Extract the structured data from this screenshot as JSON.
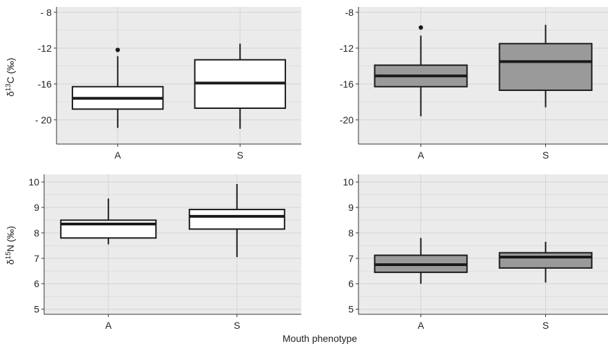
{
  "figure": {
    "xlabel": "Mouth phenotype",
    "ylabel_top": {
      "prefix": "δ",
      "sup": "13",
      "main": "C (‰)"
    },
    "ylabel_bottom": {
      "prefix": "δ",
      "sup": "15",
      "main": "N (‰)"
    }
  },
  "colors": {
    "panel_background": "#ebebeb",
    "grid": "#d4d4d4",
    "box_fill_left": "#ffffff",
    "box_fill_right": "#9a9a9a",
    "box_stroke": "#1a1a1a",
    "axis": "#333333"
  },
  "chart_data": [
    {
      "type": "box",
      "panel": "top-left",
      "categories": [
        "A",
        "S"
      ],
      "ylim": [
        -22.7,
        -7.4
      ],
      "yticks": [
        -8,
        -12,
        -16,
        -20
      ],
      "ytick_labels": [
        "- 8",
        "-12",
        "-16",
        "- 20"
      ],
      "boxes": [
        {
          "category": "A",
          "whisker_low": -20.9,
          "q1": -18.8,
          "median": -17.6,
          "q3": -16.3,
          "whisker_high": -12.9,
          "outliers": [
            -12.2
          ]
        },
        {
          "category": "S",
          "whisker_low": -21.0,
          "q1": -18.7,
          "median": -15.9,
          "q3": -13.3,
          "whisker_high": -11.5,
          "outliers": []
        }
      ]
    },
    {
      "type": "box",
      "panel": "top-right",
      "categories": [
        "A",
        "S"
      ],
      "ylim": [
        -22.7,
        -7.4
      ],
      "yticks": [
        -8,
        -12,
        -16,
        -20
      ],
      "ytick_labels": [
        "-8",
        "-12",
        "-16",
        "-20"
      ],
      "boxes": [
        {
          "category": "A",
          "whisker_low": -19.6,
          "q1": -16.3,
          "median": -15.1,
          "q3": -13.9,
          "whisker_high": -10.6,
          "outliers": [
            -9.7
          ]
        },
        {
          "category": "S",
          "whisker_low": -18.6,
          "q1": -16.7,
          "median": -13.5,
          "q3": -11.5,
          "whisker_high": -9.4,
          "outliers": []
        }
      ]
    },
    {
      "type": "box",
      "panel": "bottom-left",
      "categories": [
        "A",
        "S"
      ],
      "ylim": [
        4.8,
        10.3
      ],
      "yticks": [
        5,
        6,
        7,
        8,
        9,
        10
      ],
      "ytick_labels": [
        "5",
        "6",
        "7",
        "8",
        "9",
        "10"
      ],
      "boxes": [
        {
          "category": "A",
          "whisker_low": 7.55,
          "q1": 7.8,
          "median": 8.35,
          "q3": 8.5,
          "whisker_high": 9.35,
          "outliers": []
        },
        {
          "category": "S",
          "whisker_low": 7.05,
          "q1": 8.15,
          "median": 8.65,
          "q3": 8.92,
          "whisker_high": 9.92,
          "outliers": []
        }
      ]
    },
    {
      "type": "box",
      "panel": "bottom-right",
      "categories": [
        "A",
        "S"
      ],
      "ylim": [
        4.8,
        10.3
      ],
      "yticks": [
        5,
        6,
        7,
        8,
        9,
        10
      ],
      "ytick_labels": [
        "5",
        "6",
        "7",
        "8",
        "9",
        "10"
      ],
      "boxes": [
        {
          "category": "A",
          "whisker_low": 6.0,
          "q1": 6.45,
          "median": 6.75,
          "q3": 7.12,
          "whisker_high": 7.8,
          "outliers": []
        },
        {
          "category": "S",
          "whisker_low": 6.05,
          "q1": 6.62,
          "median": 7.05,
          "q3": 7.22,
          "whisker_high": 7.65,
          "outliers": []
        }
      ]
    }
  ]
}
